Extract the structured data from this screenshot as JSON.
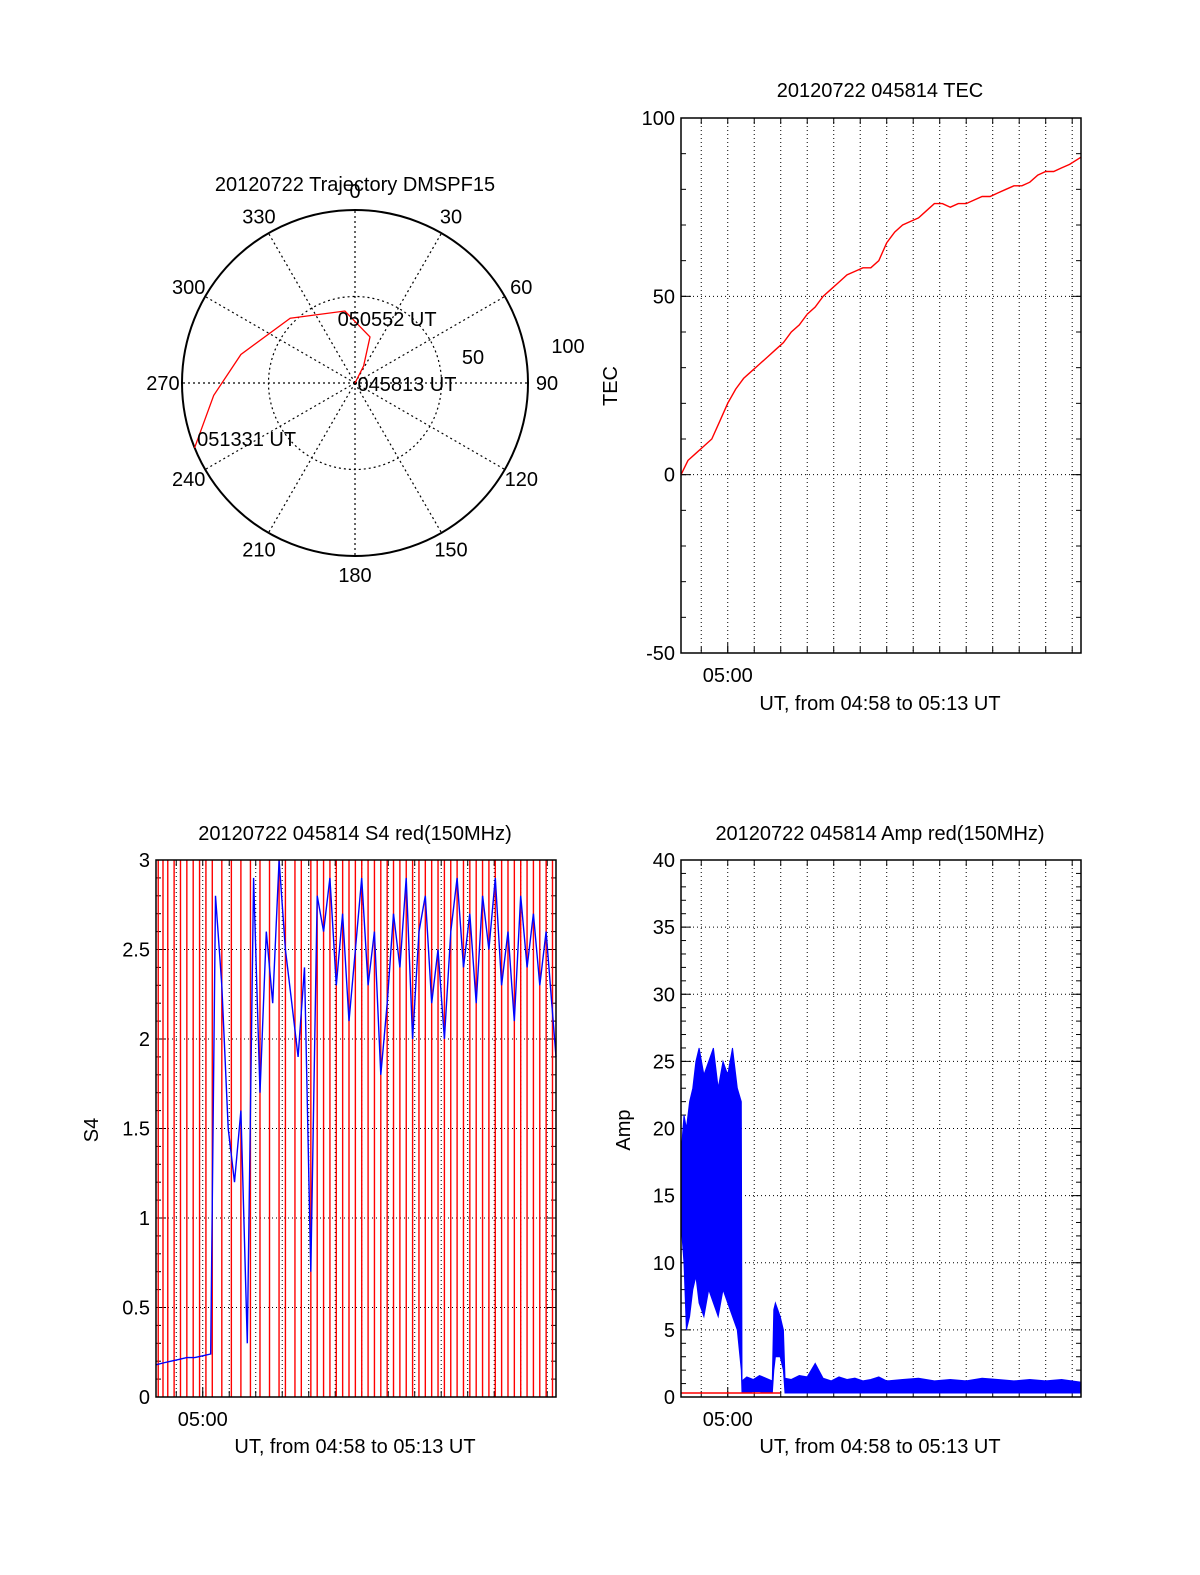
{
  "colors": {
    "red": "#ff0000",
    "blue": "#0000ff",
    "axis": "#000000",
    "grid": "#000000"
  },
  "chart_data": [
    {
      "type": "polar",
      "title": "20120722 Trajectory DMSPF15",
      "azimuth_labels": [
        "0",
        "30",
        "60",
        "90",
        "120",
        "150",
        "180",
        "210",
        "240",
        "270",
        "300",
        "330"
      ],
      "radius_labels": [
        "50",
        "100"
      ],
      "grid": true,
      "track": {
        "color": "#ff0000",
        "points": [
          [
            31,
            0
          ],
          [
            27,
            11
          ],
          [
            18,
            28
          ],
          [
            352,
            42
          ],
          [
            315,
            53
          ],
          [
            284,
            68
          ],
          [
            265,
            82
          ],
          [
            248,
            100
          ]
        ]
      },
      "annotations": [
        {
          "text": "045813 UT",
          "az": 31,
          "zen": 0
        },
        {
          "text": "050552 UT",
          "az": 28,
          "zen": 42
        },
        {
          "text": "051331 UT",
          "az": 248,
          "zen": 100
        }
      ]
    },
    {
      "type": "line",
      "title": "20120722 045814 TEC",
      "xlabel": "UT, from 04:58 to 05:13 UT",
      "ylabel": "TEC",
      "xlim": [
        4.9706,
        5.2222
      ],
      "ylim": [
        -50,
        100
      ],
      "yticks": [
        -50,
        0,
        50,
        100
      ],
      "xticklabels": [
        {
          "x": 5.0,
          "label": "05:00"
        }
      ],
      "grid": true,
      "series": [
        {
          "color": "#ff0000",
          "x": [
            4.9706,
            4.975,
            4.98,
            4.985,
            4.99,
            4.995,
            5.0,
            5.005,
            5.01,
            5.015,
            5.02,
            5.025,
            5.03,
            5.035,
            5.04,
            5.045,
            5.05,
            5.055,
            5.06,
            5.065,
            5.07,
            5.075,
            5.08,
            5.085,
            5.09,
            5.095,
            5.1,
            5.105,
            5.11,
            5.115,
            5.12,
            5.125,
            5.13,
            5.135,
            5.14,
            5.145,
            5.15,
            5.155,
            5.16,
            5.165,
            5.17,
            5.175,
            5.18,
            5.185,
            5.19,
            5.195,
            5.2,
            5.205,
            5.21,
            5.215,
            5.2222
          ],
          "values": [
            0,
            4,
            6,
            8,
            10,
            15,
            20,
            24,
            27,
            29,
            31,
            33,
            35,
            37,
            40,
            42,
            45,
            47,
            50,
            52,
            54,
            56,
            57,
            58,
            58,
            60,
            65,
            68,
            70,
            71,
            72,
            74,
            76,
            76,
            75,
            76,
            76,
            77,
            78,
            78,
            79,
            80,
            81,
            81,
            82,
            84,
            85,
            85,
            86,
            87,
            89
          ]
        }
      ]
    },
    {
      "type": "line",
      "title": "20120722 045814 S4 red(150MHz)",
      "xlabel": "UT, from 04:58 to 05:13 UT",
      "ylabel": "S4",
      "xlim": [
        4.9706,
        5.2222
      ],
      "ylim": [
        0,
        3
      ],
      "yticks": [
        0,
        0.5,
        1,
        1.5,
        2,
        2.5,
        3
      ],
      "xticklabels": [
        {
          "x": 5.0,
          "label": "05:00"
        }
      ],
      "grid": true,
      "series": [
        {
          "color": "#ff0000",
          "style": "vertical-spikes",
          "range": [
            0,
            3
          ],
          "x": [
            4.972,
            4.975,
            4.978,
            4.982,
            4.986,
            4.99,
            4.994,
            4.998,
            5.002,
            5.006,
            5.012,
            5.018,
            5.024,
            5.03,
            5.036,
            5.042,
            5.048,
            5.052,
            5.058,
            5.062,
            5.068,
            5.072,
            5.076,
            5.08,
            5.084,
            5.088,
            5.092,
            5.096,
            5.1,
            5.104,
            5.108,
            5.112,
            5.116,
            5.12,
            5.124,
            5.128,
            5.132,
            5.136,
            5.14,
            5.144,
            5.148,
            5.152,
            5.156,
            5.16,
            5.164,
            5.168,
            5.172,
            5.176,
            5.18,
            5.184,
            5.188,
            5.192,
            5.196,
            5.2,
            5.204,
            5.208,
            5.212,
            5.216,
            5.22
          ]
        },
        {
          "color": "#0000ff",
          "x": [
            4.9706,
            4.975,
            4.98,
            4.985,
            4.99,
            4.995,
            5.0,
            5.005,
            5.008,
            5.012,
            5.016,
            5.02,
            5.024,
            5.028,
            5.032,
            5.036,
            5.04,
            5.044,
            5.048,
            5.052,
            5.056,
            5.06,
            5.064,
            5.068,
            5.072,
            5.076,
            5.08,
            5.084,
            5.088,
            5.092,
            5.096,
            5.1,
            5.104,
            5.108,
            5.112,
            5.116,
            5.12,
            5.124,
            5.128,
            5.132,
            5.136,
            5.14,
            5.144,
            5.148,
            5.152,
            5.156,
            5.16,
            5.164,
            5.168,
            5.172,
            5.176,
            5.18,
            5.184,
            5.188,
            5.192,
            5.196,
            5.2,
            5.204,
            5.208,
            5.212,
            5.216,
            5.2222
          ],
          "values": [
            0.18,
            0.19,
            0.2,
            0.21,
            0.22,
            0.22,
            0.23,
            0.24,
            2.8,
            2.3,
            1.5,
            1.2,
            1.6,
            0.3,
            2.9,
            1.7,
            2.6,
            2.2,
            3.0,
            2.5,
            2.2,
            1.9,
            2.4,
            0.7,
            2.8,
            2.6,
            2.9,
            2.3,
            2.7,
            2.1,
            2.5,
            2.9,
            2.3,
            2.6,
            1.8,
            2.2,
            2.7,
            2.4,
            2.9,
            2.0,
            2.6,
            2.8,
            2.2,
            2.5,
            2.0,
            2.6,
            2.9,
            2.4,
            2.7,
            2.2,
            2.8,
            2.5,
            2.9,
            2.3,
            2.6,
            2.1,
            2.8,
            2.4,
            2.7,
            2.3,
            2.6,
            1.9
          ]
        }
      ]
    },
    {
      "type": "line",
      "title": "20120722 045814 Amp red(150MHz)",
      "xlabel": "UT, from 04:58 to 05:13 UT",
      "ylabel": "Amp",
      "xlim": [
        4.9706,
        5.2222
      ],
      "ylim": [
        0,
        40
      ],
      "yticks": [
        0,
        5,
        10,
        15,
        20,
        25,
        30,
        35,
        40
      ],
      "xticklabels": [
        {
          "x": 5.0,
          "label": "05:00"
        }
      ],
      "grid": true,
      "series": [
        {
          "color": "#0000ff",
          "style": "envelope",
          "x": [
            4.9706,
            4.9725,
            4.974,
            4.976,
            4.978,
            4.98,
            4.982,
            4.985,
            4.988,
            4.991,
            4.994,
            4.997,
            5.0,
            5.003,
            5.006,
            5.0085,
            5.009,
            5.012,
            5.016,
            5.02,
            5.024,
            5.028,
            5.029,
            5.03,
            5.033,
            5.035,
            5.036,
            5.04,
            5.045,
            5.05,
            5.055,
            5.06,
            5.065,
            5.07,
            5.075,
            5.08,
            5.085,
            5.09,
            5.095,
            5.1,
            5.11,
            5.12,
            5.13,
            5.14,
            5.15,
            5.16,
            5.17,
            5.18,
            5.19,
            5.2,
            5.21,
            5.2222
          ],
          "low": [
            13,
            10,
            5,
            6,
            8,
            9,
            7,
            6,
            8,
            7,
            6,
            8,
            7,
            6,
            5,
            2,
            0.3,
            0.3,
            0.4,
            0.4,
            0.3,
            0.3,
            2,
            3,
            3,
            2,
            0.3,
            0.3,
            0.3,
            0.3,
            0.3,
            0.3,
            0.3,
            0.3,
            0.3,
            0.3,
            0.3,
            0.3,
            0.3,
            0.3,
            0.3,
            0.3,
            0.3,
            0.3,
            0.3,
            0.3,
            0.3,
            0.3,
            0.3,
            0.3,
            0.3,
            0.3
          ],
          "high": [
            18,
            21,
            20,
            22,
            23,
            25,
            26,
            24,
            25,
            26,
            23,
            25,
            24,
            26,
            23,
            22,
            1.2,
            1.5,
            1.3,
            1.6,
            1.4,
            1.2,
            6.5,
            7,
            6,
            5,
            1.4,
            1.3,
            1.6,
            1.5,
            2.5,
            1.4,
            1.2,
            1.5,
            1.3,
            1.4,
            1.2,
            1.3,
            1.5,
            1.2,
            1.3,
            1.4,
            1.2,
            1.3,
            1.2,
            1.4,
            1.3,
            1.2,
            1.3,
            1.2,
            1.3,
            1.1
          ]
        },
        {
          "color": "#ff0000",
          "x": [
            4.9706,
            4.98,
            4.99,
            5.0,
            5.008,
            5.03,
            5.033
          ],
          "values": [
            0.3,
            0.3,
            0.3,
            0.3,
            0.3,
            0.3,
            0.3
          ]
        }
      ]
    }
  ]
}
